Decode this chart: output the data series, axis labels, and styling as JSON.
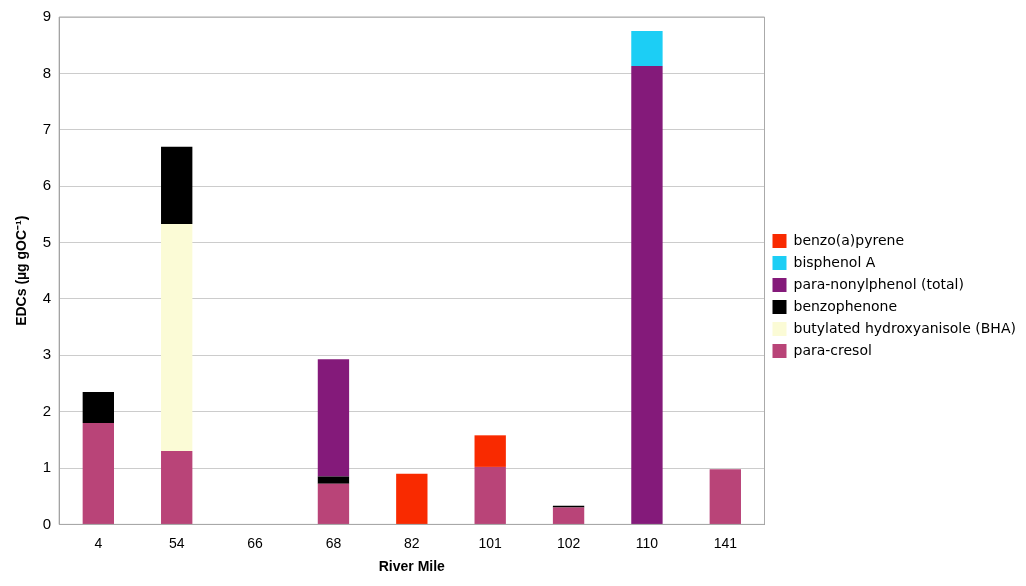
{
  "chart_data": {
    "type": "bar",
    "stacked": true,
    "xlabel": "River Mile",
    "ylabel": "EDCs (µg gOC⁻¹)",
    "categories": [
      "4",
      "54",
      "66",
      "68",
      "82",
      "101",
      "102",
      "110",
      "141"
    ],
    "series": [
      {
        "name": "para-cresol",
        "color": "#b94478",
        "values": [
          1.8,
          1.3,
          null,
          0.72,
          null,
          1.02,
          0.3,
          null,
          0.98
        ]
      },
      {
        "name": "butylated hydroxyanisole (BHA)",
        "color": "#fbfbd6",
        "values": [
          null,
          4.03,
          null,
          null,
          null,
          null,
          null,
          null,
          null
        ]
      },
      {
        "name": "benzophenone",
        "color": "#000000",
        "values": [
          0.55,
          1.37,
          null,
          0.13,
          null,
          null,
          0.03,
          null,
          null
        ]
      },
      {
        "name": "para-nonylphenol (total)",
        "color": "#841a7a",
        "values": [
          null,
          null,
          null,
          2.08,
          null,
          null,
          null,
          8.13,
          null
        ]
      },
      {
        "name": "bisphenol A",
        "color": "#1ccef5",
        "values": [
          null,
          null,
          null,
          null,
          null,
          null,
          null,
          0.62,
          null
        ]
      },
      {
        "name": "benzo(a)pyrene",
        "color": "#f92a00",
        "values": [
          null,
          null,
          null,
          null,
          0.9,
          0.56,
          null,
          null,
          null
        ]
      }
    ],
    "ylim": [
      0,
      9
    ],
    "yticks": [
      0,
      1,
      2,
      3,
      4,
      5,
      6,
      7,
      8,
      9
    ],
    "grid": "y",
    "legend": "right"
  }
}
